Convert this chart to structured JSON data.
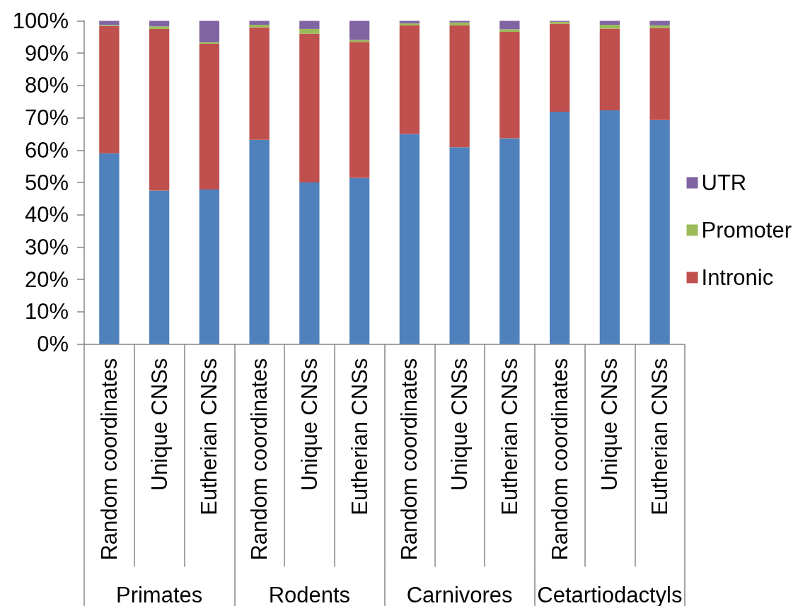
{
  "chart_data": {
    "type": "bar",
    "stacked": true,
    "categories": [
      "Random coordinates",
      "Unique CNSs",
      "Eutherian CNSs",
      "Random coordinates",
      "Unique CNSs",
      "Eutherian CNSs",
      "Random coordinates",
      "Unique CNSs",
      "Eutherian CNSs",
      "Random coordinates",
      "Unique CNSs",
      "Eutherian CNSs"
    ],
    "series": [
      {
        "color": "#4f81bd",
        "values": [
          59,
          47.5,
          47.8,
          63.2,
          50,
          51.4,
          65,
          60.9,
          63.7,
          71.9,
          72.3,
          69.3
        ]
      },
      {
        "name": "Intronic",
        "color": "#c0504d",
        "values": [
          39.4,
          50,
          45.1,
          34.8,
          46,
          42.1,
          33.6,
          37.7,
          32.9,
          27.2,
          25.3,
          28.5
        ]
      },
      {
        "name": "Promoter",
        "color": "#9bbb59",
        "values": [
          0.3,
          0.8,
          0.5,
          0.8,
          1.5,
          0.6,
          0.6,
          0.9,
          0.8,
          0.6,
          1.2,
          0.8
        ]
      },
      {
        "name": "UTR",
        "color": "#8064a2",
        "values": [
          1.3,
          1.7,
          6.6,
          1.2,
          2.5,
          5.9,
          0.8,
          0.5,
          2.6,
          0.3,
          1.2,
          1.4
        ]
      }
    ],
    "ylim": [
      0,
      100
    ],
    "yticks": [
      {
        "value": 0,
        "label": "0%"
      },
      {
        "value": 10,
        "label": "10%"
      },
      {
        "value": 20,
        "label": "20%"
      },
      {
        "value": 30,
        "label": "30%"
      },
      {
        "value": 40,
        "label": "40%"
      },
      {
        "value": 50,
        "label": "50%"
      },
      {
        "value": 60,
        "label": "60%"
      },
      {
        "value": 70,
        "label": "70%"
      },
      {
        "value": 80,
        "label": "80%"
      },
      {
        "value": 90,
        "label": "90%"
      },
      {
        "value": 100,
        "label": "100%"
      }
    ],
    "grid": false,
    "legend": "right",
    "annotations": [
      "Primates",
      "Rodents",
      "Carnivores",
      "Cetartiodactyls"
    ]
  }
}
